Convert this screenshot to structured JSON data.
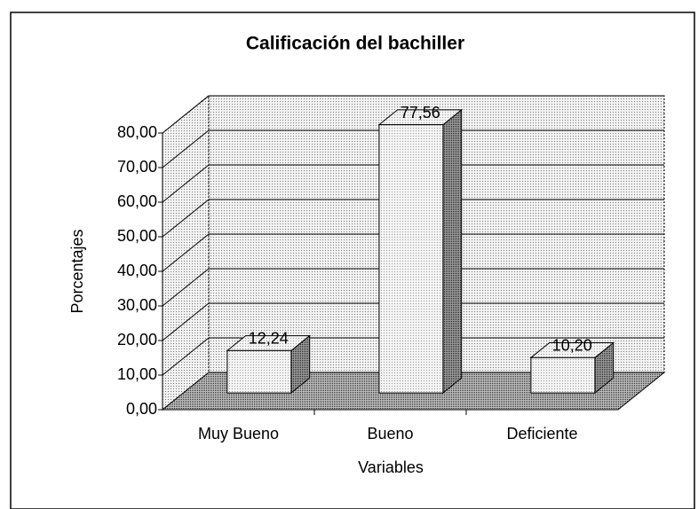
{
  "chart_data": {
    "type": "bar3d",
    "title": "Calificación del bachiller",
    "categories": [
      "Muy Bueno",
      "Bueno",
      "Deficiente"
    ],
    "values": [
      12.24,
      77.56,
      10.2
    ],
    "value_labels": [
      "12,24",
      "77,56",
      "10,20"
    ],
    "color": "#e8e8e8",
    "ylim": [
      0,
      80
    ],
    "yticks": [
      {
        "value": 0,
        "label": "0,00"
      },
      {
        "value": 10,
        "label": "10,00"
      },
      {
        "value": 20,
        "label": "20,00"
      },
      {
        "value": 30,
        "label": "30,00"
      },
      {
        "value": 40,
        "label": "40,00"
      },
      {
        "value": 50,
        "label": "50,00"
      },
      {
        "value": 60,
        "label": "60,00"
      },
      {
        "value": 70,
        "label": "70,00"
      },
      {
        "value": 80,
        "label": "80,00"
      }
    ],
    "grid": true,
    "x_label": "Variables",
    "y_label": "Porcentajes"
  }
}
